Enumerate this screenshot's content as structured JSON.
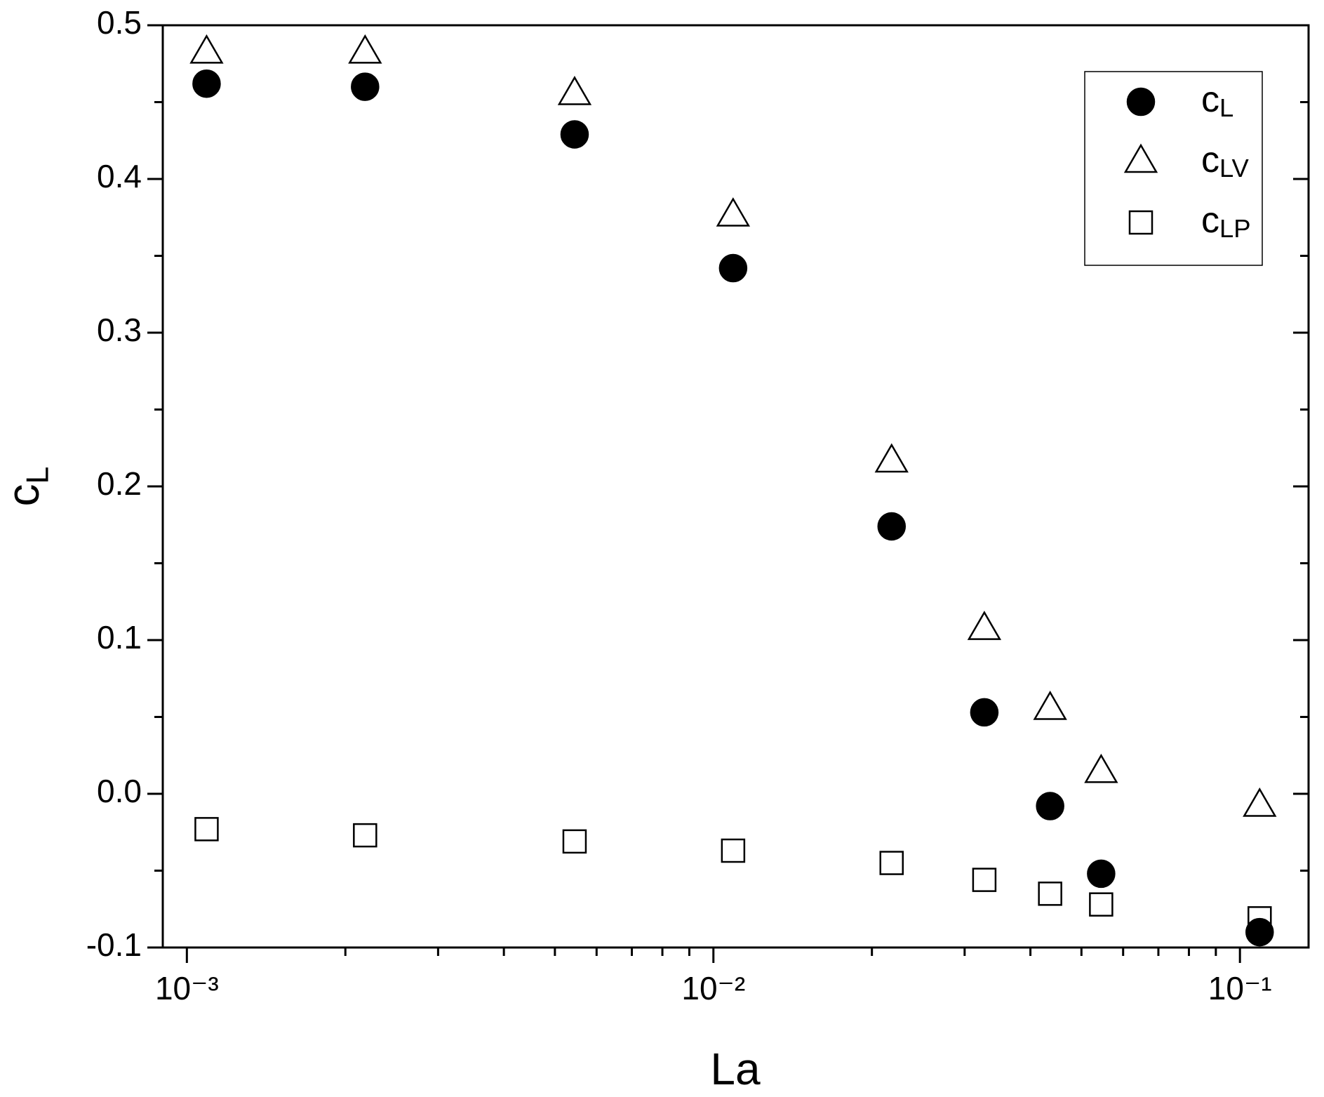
{
  "chart_data": {
    "type": "scatter",
    "x_label": "La",
    "y_label": "cL",
    "log_x": true,
    "xlim": [
      0.0009,
      0.135
    ],
    "ylim": [
      -0.1,
      0.5
    ],
    "xticks": [
      {
        "value": 0.001,
        "label": "10⁻³"
      },
      {
        "value": 0.01,
        "label": "10⁻²"
      },
      {
        "value": 0.1,
        "label": "10⁻¹"
      }
    ],
    "xminorticks": [
      0.002,
      0.003,
      0.004,
      0.005,
      0.006,
      0.007,
      0.008,
      0.009,
      0.02,
      0.03,
      0.04,
      0.05,
      0.06,
      0.07,
      0.08,
      0.09
    ],
    "yticks": [
      -0.1,
      {
        "value": 0.0,
        "label": "0.0"
      },
      0.1,
      0.2,
      0.3,
      0.4,
      0.5
    ],
    "yminorticks": [
      -0.05,
      0.05,
      0.15,
      0.25,
      0.35,
      0.45
    ],
    "legend": "upper right",
    "x": [
      0.00109,
      0.00218,
      0.00545,
      0.0109,
      0.0218,
      0.0327,
      0.0436,
      0.0545,
      0.109
    ],
    "series": [
      {
        "name": "cL",
        "marker": "circle",
        "filled": true,
        "color": "#000000",
        "values": [
          0.462,
          0.46,
          0.429,
          0.342,
          0.174,
          0.053,
          -0.008,
          -0.052,
          -0.09
        ]
      },
      {
        "name": "cLV",
        "marker": "triangle",
        "filled": false,
        "color": "#000000",
        "values": [
          0.482,
          0.482,
          0.455,
          0.376,
          0.216,
          0.107,
          0.055,
          0.014,
          -0.008
        ]
      },
      {
        "name": "cLP",
        "marker": "square",
        "filled": false,
        "color": "#000000",
        "values": [
          -0.023,
          -0.027,
          -0.031,
          -0.037,
          -0.045,
          -0.056,
          -0.065,
          -0.072,
          -0.081
        ]
      }
    ]
  }
}
